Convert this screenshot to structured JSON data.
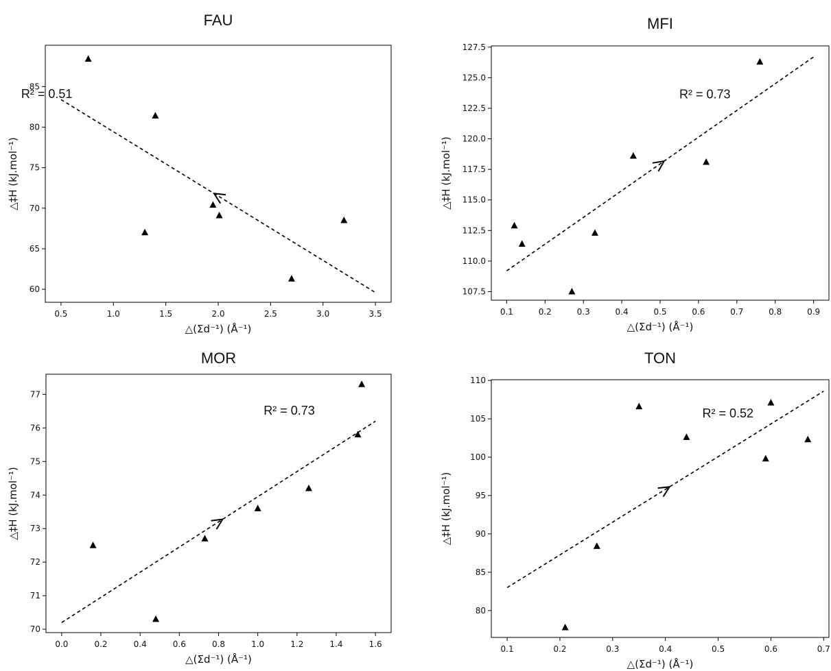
{
  "chart_data": [
    {
      "type": "scatter",
      "title": "FAU",
      "xlabel": "△(Σd⁻¹) (Å⁻¹)",
      "ylabel": "△‡H (kJ.mol⁻¹)",
      "xlim": [
        0.35,
        3.65
      ],
      "ylim": [
        58.4,
        90.1
      ],
      "xticks": [
        0.5,
        1.0,
        1.5,
        2.0,
        2.5,
        3.0,
        3.5
      ],
      "xtick_labels": [
        "0.5",
        "1.0",
        "1.5",
        "2.0",
        "2.5",
        "3.0",
        "3.5"
      ],
      "yticks": [
        60,
        65,
        70,
        75,
        80,
        85
      ],
      "ytick_labels": [
        "60",
        "65",
        "70",
        "75",
        "80",
        "85"
      ],
      "grid": false,
      "annotation": "R² = 0.51",
      "series": [
        {
          "marker": "triangle",
          "points": [
            {
              "x": 0.76,
              "y": 88.4
            },
            {
              "x": 1.4,
              "y": 81.4
            },
            {
              "x": 1.3,
              "y": 67.0
            },
            {
              "x": 1.95,
              "y": 70.4
            },
            {
              "x": 2.01,
              "y": 69.1
            },
            {
              "x": 2.7,
              "y": 61.3
            },
            {
              "x": 3.2,
              "y": 68.5
            }
          ]
        }
      ],
      "fit_line": {
        "style": "dashed",
        "from": [
          0.5,
          83.4
        ],
        "to": [
          3.5,
          59.6
        ],
        "arrow": "backward"
      }
    },
    {
      "type": "scatter",
      "title": "MFI",
      "xlabel": "△(Σd⁻¹) (Å⁻¹)",
      "ylabel": "△‡H (kJ.mol⁻¹)",
      "xlim": [
        0.06,
        0.94
      ],
      "ylim": [
        106.8,
        127.6
      ],
      "xticks": [
        0.1,
        0.2,
        0.3,
        0.4,
        0.5,
        0.6,
        0.7,
        0.8,
        0.9
      ],
      "xtick_labels": [
        "0.1",
        "0.2",
        "0.3",
        "0.4",
        "0.5",
        "0.6",
        "0.7",
        "0.8",
        "0.9"
      ],
      "yticks": [
        107.5,
        110.0,
        112.5,
        115.0,
        117.5,
        120.0,
        122.5,
        125.0,
        127.5
      ],
      "ytick_labels": [
        "107.5",
        "110.0",
        "112.5",
        "115.0",
        "117.5",
        "120.0",
        "122.5",
        "125.0",
        "127.5"
      ],
      "grid": false,
      "annotation": "R² = 0.73",
      "series": [
        {
          "marker": "triangle",
          "points": [
            {
              "x": 0.12,
              "y": 112.9
            },
            {
              "x": 0.14,
              "y": 111.4
            },
            {
              "x": 0.27,
              "y": 107.5
            },
            {
              "x": 0.33,
              "y": 112.3
            },
            {
              "x": 0.43,
              "y": 118.6
            },
            {
              "x": 0.62,
              "y": 118.1
            },
            {
              "x": 0.76,
              "y": 126.3
            }
          ]
        }
      ],
      "fit_line": {
        "style": "dashed",
        "from": [
          0.1,
          109.2
        ],
        "to": [
          0.9,
          126.7
        ],
        "arrow": "forward"
      }
    },
    {
      "type": "scatter",
      "title": "MOR",
      "xlabel": "△(Σd⁻¹) (Å⁻¹)",
      "ylabel": "△‡H (kJ.mol⁻¹)",
      "xlim": [
        -0.08,
        1.68
      ],
      "ylim": [
        69.9,
        77.6
      ],
      "xticks": [
        0.0,
        0.2,
        0.4,
        0.6,
        0.8,
        1.0,
        1.2,
        1.4,
        1.6
      ],
      "xtick_labels": [
        "0.0",
        "0.2",
        "0.4",
        "0.6",
        "0.8",
        "1.0",
        "1.2",
        "1.4",
        "1.6"
      ],
      "yticks": [
        70,
        71,
        72,
        73,
        74,
        75,
        76,
        77
      ],
      "ytick_labels": [
        "70",
        "71",
        "72",
        "73",
        "74",
        "75",
        "76",
        "77"
      ],
      "grid": false,
      "annotation": "R² = 0.73",
      "series": [
        {
          "marker": "triangle",
          "points": [
            {
              "x": 0.16,
              "y": 72.5
            },
            {
              "x": 0.48,
              "y": 70.3
            },
            {
              "x": 0.73,
              "y": 72.7
            },
            {
              "x": 1.0,
              "y": 73.6
            },
            {
              "x": 1.26,
              "y": 74.2
            },
            {
              "x": 1.51,
              "y": 75.8
            },
            {
              "x": 1.53,
              "y": 77.3
            }
          ]
        }
      ],
      "fit_line": {
        "style": "dashed",
        "from": [
          0.0,
          70.2
        ],
        "to": [
          1.6,
          76.2
        ],
        "arrow": "forward"
      }
    },
    {
      "type": "scatter",
      "title": "TON",
      "xlabel": "△(Σd⁻¹) (Å⁻¹)",
      "ylabel": "△‡H (kJ.mol⁻¹)",
      "xlim": [
        0.07,
        0.71
      ],
      "ylim": [
        76.5,
        110.1
      ],
      "xticks": [
        0.1,
        0.2,
        0.3,
        0.4,
        0.5,
        0.6,
        0.7
      ],
      "xtick_labels": [
        "0.1",
        "0.2",
        "0.3",
        "0.4",
        "0.5",
        "0.6",
        "0.7"
      ],
      "yticks": [
        80,
        85,
        90,
        95,
        100,
        105,
        110
      ],
      "ytick_labels": [
        "80",
        "85",
        "90",
        "95",
        "100",
        "105",
        "110"
      ],
      "grid": false,
      "annotation": "R² = 0.52",
      "series": [
        {
          "marker": "triangle",
          "points": [
            {
              "x": 0.21,
              "y": 77.8
            },
            {
              "x": 0.27,
              "y": 88.4
            },
            {
              "x": 0.35,
              "y": 106.6
            },
            {
              "x": 0.44,
              "y": 102.6
            },
            {
              "x": 0.59,
              "y": 99.8
            },
            {
              "x": 0.6,
              "y": 107.1
            },
            {
              "x": 0.67,
              "y": 102.3
            }
          ]
        }
      ],
      "fit_line": {
        "style": "dashed",
        "from": [
          0.1,
          83.0
        ],
        "to": [
          0.7,
          108.6
        ],
        "arrow": "forward"
      }
    }
  ]
}
